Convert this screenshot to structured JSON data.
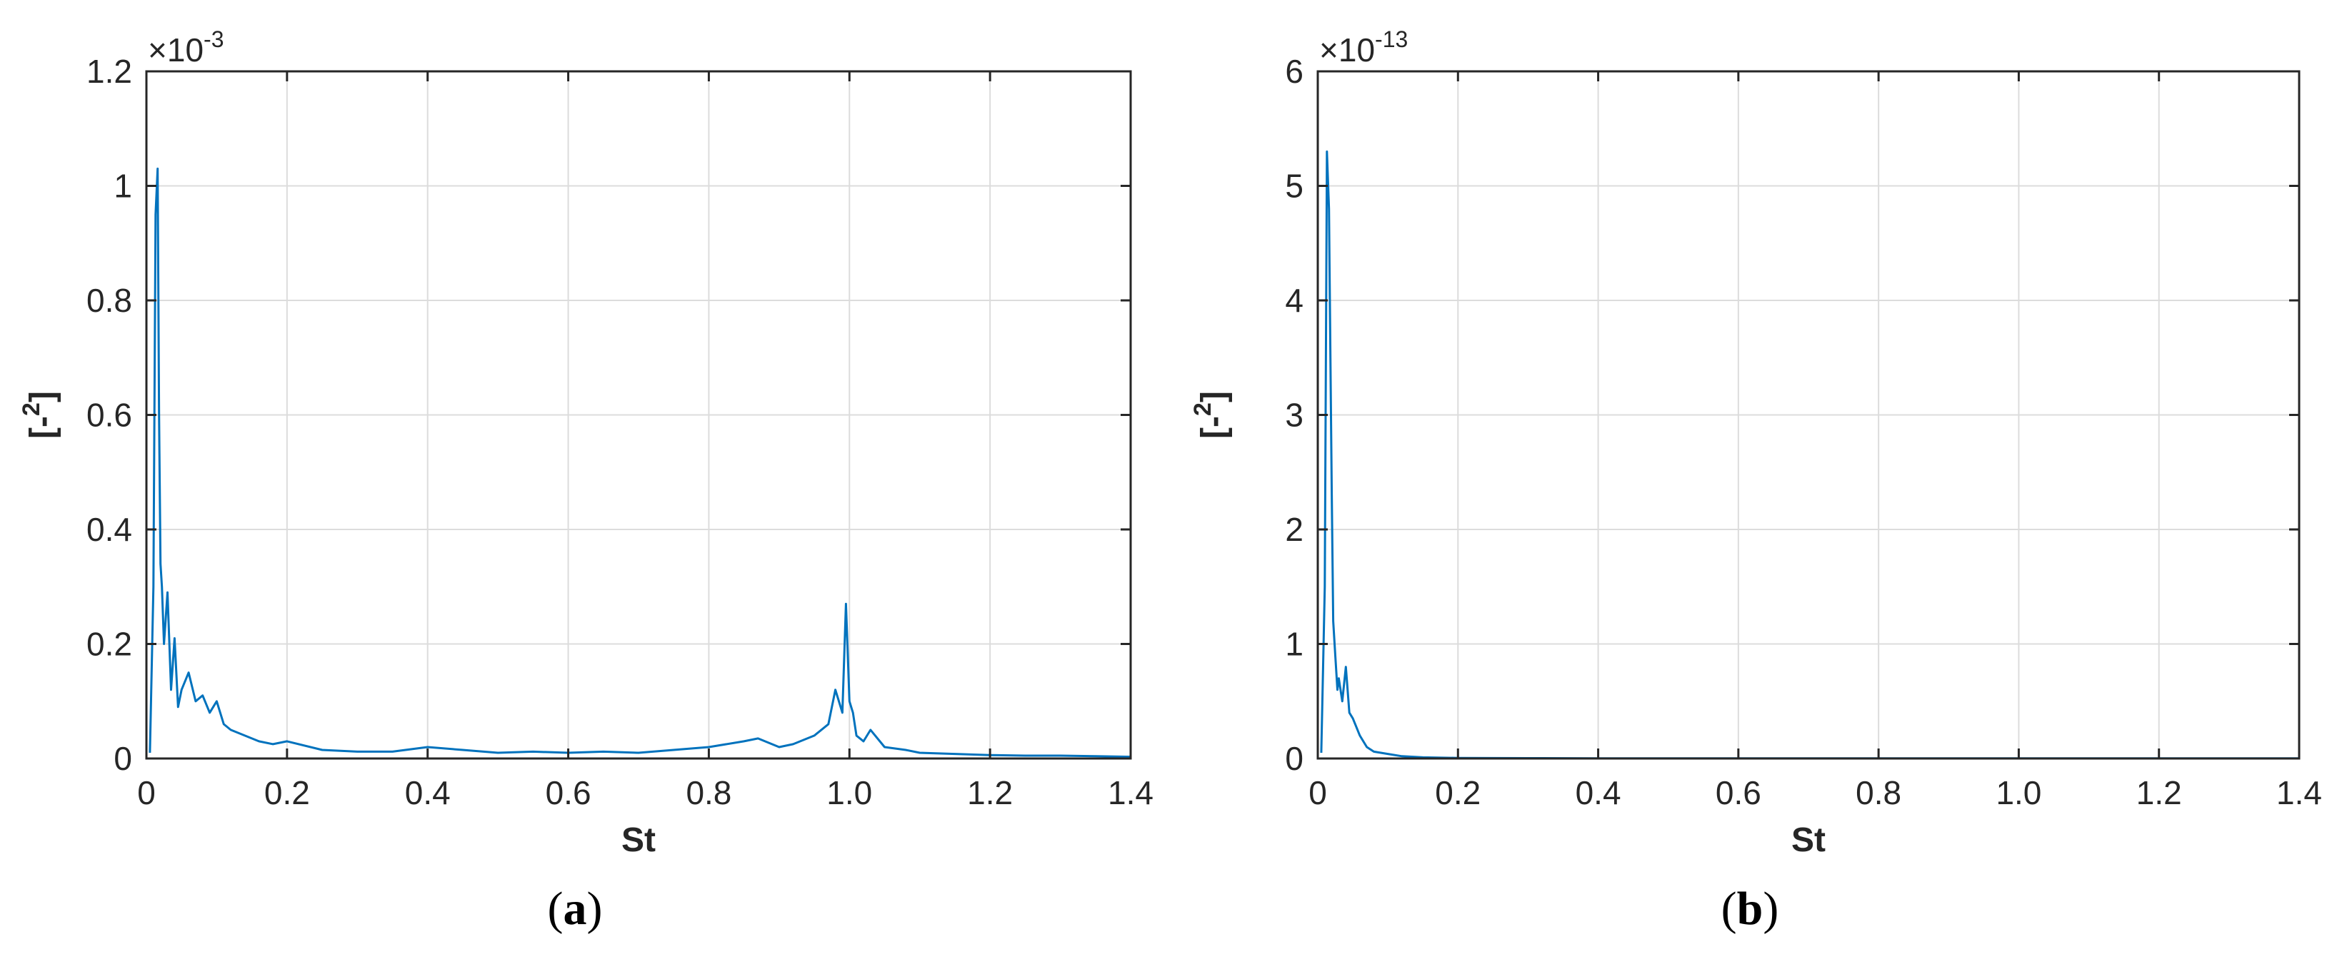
{
  "panels": [
    {
      "label_open": "(",
      "label_letter": "a",
      "label_close": ")",
      "exponent_base": "×10",
      "exponent_power": "-3"
    },
    {
      "label_open": "(",
      "label_letter": "b",
      "label_close": ")",
      "exponent_base": "×10",
      "exponent_power": "-13"
    }
  ],
  "chart_data": [
    {
      "type": "line",
      "xlabel": "St",
      "ylabel_main": "[-",
      "ylabel_sup": "2",
      "ylabel_end": "]",
      "xlim": [
        0,
        1.4
      ],
      "ylim": [
        0,
        1.2
      ],
      "y_multiplier": "1e-3",
      "xticks": [
        0,
        0.2,
        0.4,
        0.6,
        0.8,
        1.0,
        1.2,
        1.4
      ],
      "xtick_labels": [
        "0",
        "0.2",
        "0.4",
        "0.6",
        "0.8",
        "1.0",
        "1.2",
        "1.4"
      ],
      "yticks": [
        0,
        0.2,
        0.4,
        0.6,
        0.8,
        1.0,
        1.2
      ],
      "ytick_labels": [
        "0",
        "0.2",
        "0.4",
        "0.6",
        "0.8",
        "1",
        "1.2"
      ],
      "grid": true,
      "line_color": "#0072BD",
      "series": [
        {
          "x": [
            0.005,
            0.01,
            0.013,
            0.016,
            0.018,
            0.02,
            0.022,
            0.025,
            0.03,
            0.035,
            0.04,
            0.045,
            0.05,
            0.06,
            0.07,
            0.08,
            0.09,
            0.1,
            0.11,
            0.12,
            0.14,
            0.16,
            0.18,
            0.2,
            0.25,
            0.3,
            0.35,
            0.4,
            0.45,
            0.5,
            0.55,
            0.6,
            0.65,
            0.7,
            0.75,
            0.8,
            0.85,
            0.87,
            0.9,
            0.92,
            0.95,
            0.97,
            0.98,
            0.99,
            0.995,
            1.0,
            1.005,
            1.01,
            1.02,
            1.03,
            1.05,
            1.08,
            1.1,
            1.15,
            1.2,
            1.25,
            1.3,
            1.35,
            1.4
          ],
          "y": [
            0.01,
            0.3,
            0.95,
            1.03,
            0.6,
            0.34,
            0.3,
            0.2,
            0.29,
            0.12,
            0.21,
            0.09,
            0.12,
            0.15,
            0.1,
            0.11,
            0.08,
            0.1,
            0.06,
            0.05,
            0.04,
            0.03,
            0.025,
            0.03,
            0.015,
            0.012,
            0.012,
            0.02,
            0.015,
            0.01,
            0.012,
            0.01,
            0.012,
            0.01,
            0.015,
            0.02,
            0.03,
            0.035,
            0.02,
            0.025,
            0.04,
            0.06,
            0.12,
            0.08,
            0.27,
            0.1,
            0.08,
            0.04,
            0.03,
            0.05,
            0.02,
            0.015,
            0.01,
            0.008,
            0.006,
            0.005,
            0.005,
            0.004,
            0.003
          ]
        }
      ]
    },
    {
      "type": "line",
      "xlabel": "St",
      "ylabel_main": "[-",
      "ylabel_sup": "2",
      "ylabel_end": "]",
      "xlim": [
        0,
        1.4
      ],
      "ylim": [
        0,
        6
      ],
      "y_multiplier": "1e-13",
      "xticks": [
        0,
        0.2,
        0.4,
        0.6,
        0.8,
        1.0,
        1.2,
        1.4
      ],
      "xtick_labels": [
        "0",
        "0.2",
        "0.4",
        "0.6",
        "0.8",
        "1.0",
        "1.2",
        "1.4"
      ],
      "yticks": [
        0,
        1,
        2,
        3,
        4,
        5,
        6
      ],
      "ytick_labels": [
        "0",
        "1",
        "2",
        "3",
        "4",
        "5",
        "6"
      ],
      "grid": true,
      "line_color": "#0072BD",
      "series": [
        {
          "x": [
            0.005,
            0.01,
            0.013,
            0.016,
            0.018,
            0.02,
            0.022,
            0.025,
            0.028,
            0.03,
            0.035,
            0.04,
            0.045,
            0.05,
            0.06,
            0.07,
            0.08,
            0.1,
            0.12,
            0.15,
            0.2,
            0.3,
            0.4,
            0.6,
            0.8,
            1.0,
            1.2,
            1.4
          ],
          "y": [
            0.05,
            1.5,
            5.3,
            4.8,
            3.5,
            2.3,
            1.2,
            0.9,
            0.6,
            0.7,
            0.5,
            0.8,
            0.4,
            0.35,
            0.2,
            0.1,
            0.06,
            0.04,
            0.02,
            0.01,
            0.005,
            0.003,
            0.002,
            0.002,
            0.001,
            0.001,
            0.001,
            0.001
          ]
        }
      ]
    }
  ]
}
